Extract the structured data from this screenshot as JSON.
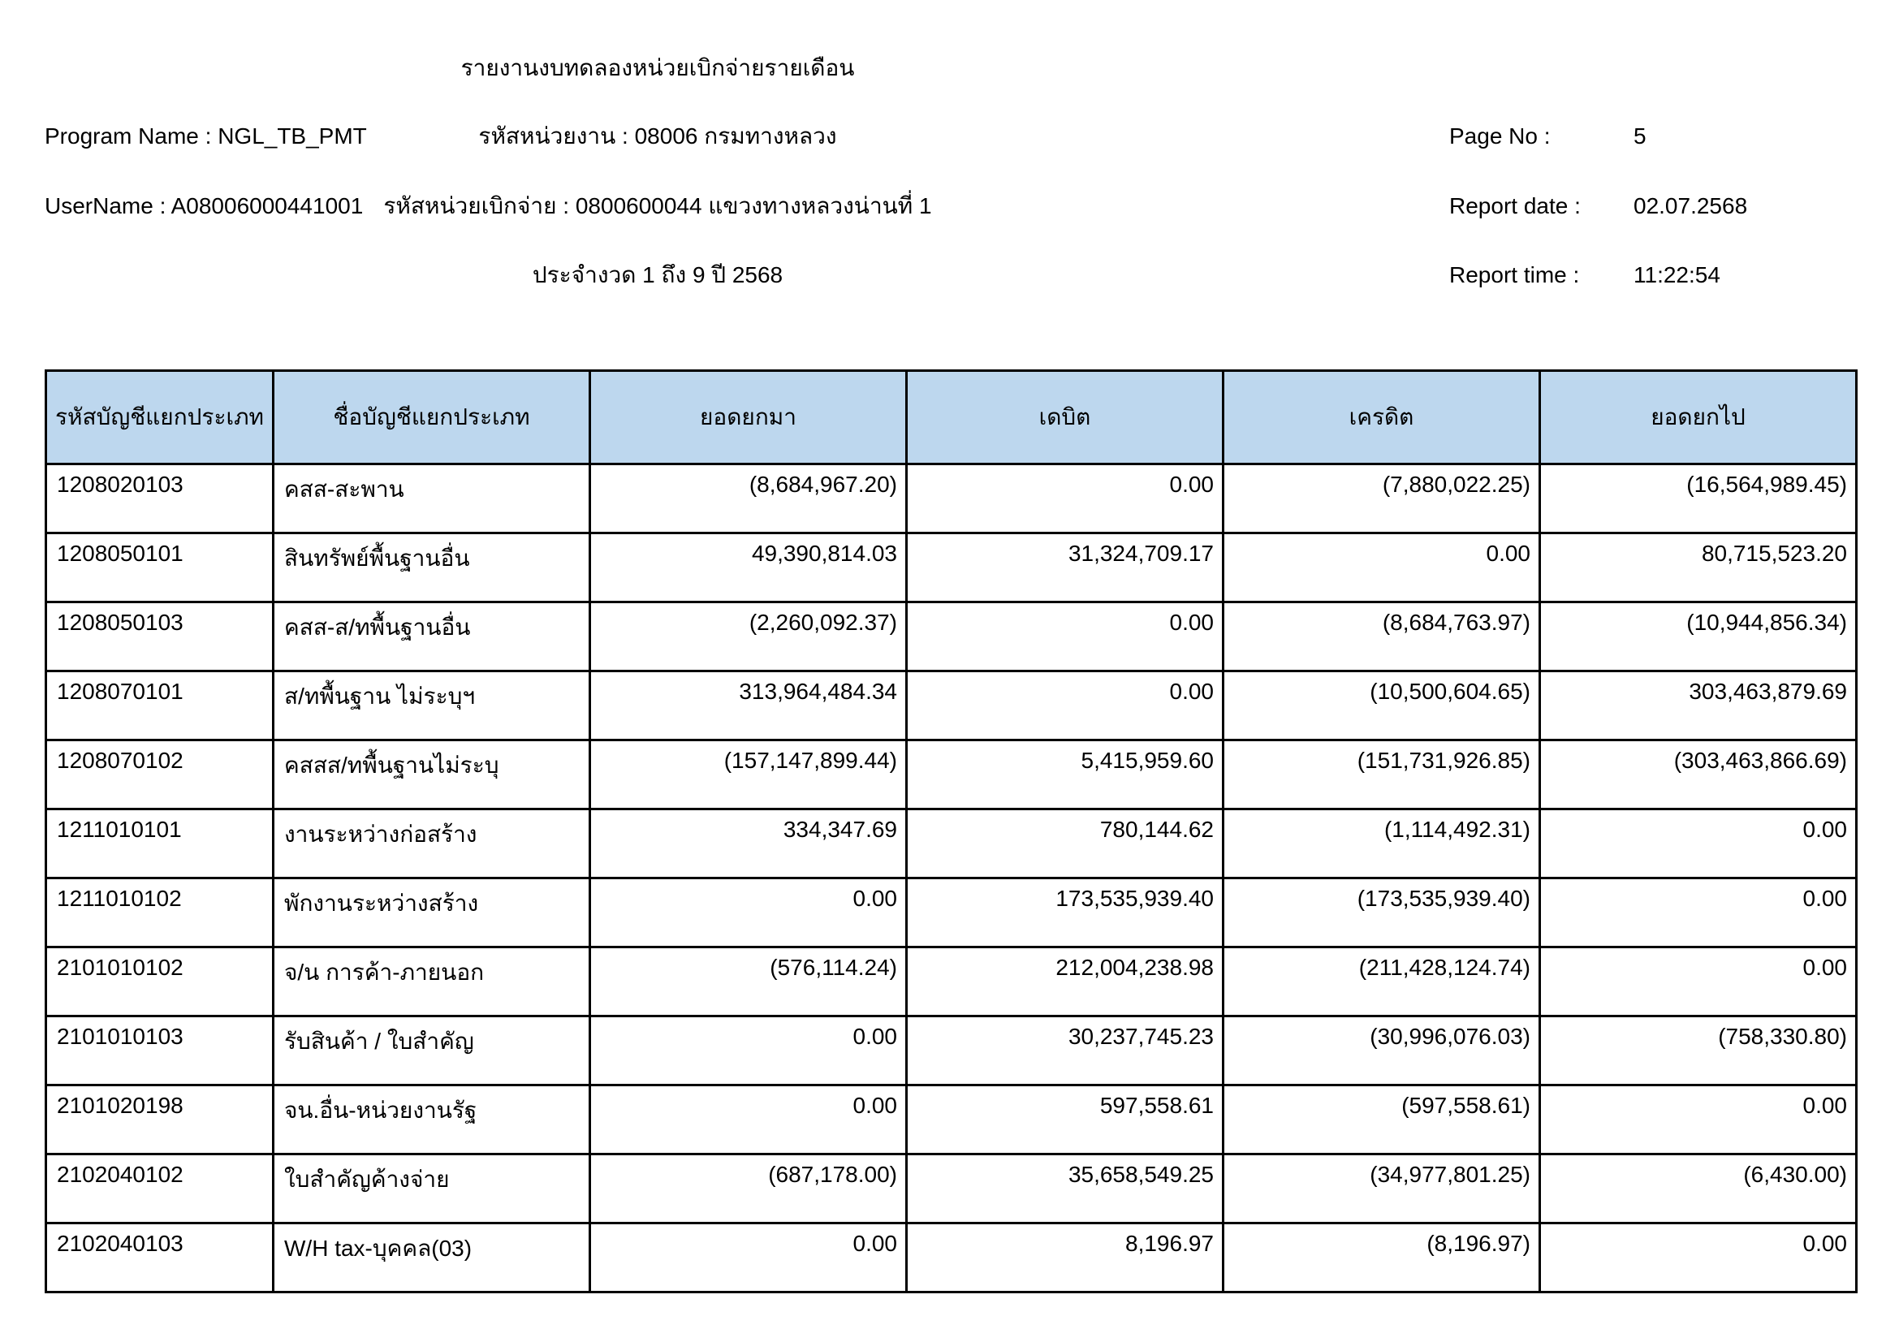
{
  "report": {
    "title": "รายงานงบทดลองหน่วยเบิกจ่ายรายเดือน",
    "program_name_label": "Program Name :",
    "program_name": "NGL_TB_PMT",
    "username_label": "UserName :",
    "username": "A08006000441001",
    "agency_line": "รหัสหน่วยงาน : 08006 กรมทางหลวง",
    "disbursement_line": "รหัสหน่วยเบิกจ่าย : 0800600044 แขวงทางหลวงน่านที่ 1",
    "period_line": "ประจำงวด 1 ถึง 9 ปี 2568",
    "page_no_label": "Page No :",
    "page_no": "5",
    "report_date_label": "Report date :",
    "report_date": "02.07.2568",
    "report_time_label": "Report time :",
    "report_time": "11:22:54"
  },
  "table": {
    "header_bg": "#BDD7EE",
    "border_color": "#000000",
    "columns": [
      "รหัสบัญชีแยกประเภท",
      "ชื่อบัญชีแยกประเภท",
      "ยอดยกมา",
      "เดบิต",
      "เครดิต",
      "ยอดยกไป"
    ],
    "rows": [
      [
        "1208020103",
        "คสส-สะพาน",
        "(8,684,967.20)",
        "0.00",
        "(7,880,022.25)",
        "(16,564,989.45)"
      ],
      [
        "1208050101",
        "สินทรัพย์พื้นฐานอื่น",
        "49,390,814.03",
        "31,324,709.17",
        "0.00",
        "80,715,523.20"
      ],
      [
        "1208050103",
        "คสส-ส/ทพื้นฐานอื่น",
        "(2,260,092.37)",
        "0.00",
        "(8,684,763.97)",
        "(10,944,856.34)"
      ],
      [
        "1208070101",
        "ส/ทพื้นฐาน ไม่ระบุฯ",
        "313,964,484.34",
        "0.00",
        "(10,500,604.65)",
        "303,463,879.69"
      ],
      [
        "1208070102",
        "คสสส/ทพื้นฐานไม่ระบุ",
        "(157,147,899.44)",
        "5,415,959.60",
        "(151,731,926.85)",
        "(303,463,866.69)"
      ],
      [
        "1211010101",
        "งานระหว่างก่อสร้าง",
        "334,347.69",
        "780,144.62",
        "(1,114,492.31)",
        "0.00"
      ],
      [
        "1211010102",
        "พักงานระหว่างสร้าง",
        "0.00",
        "173,535,939.40",
        "(173,535,939.40)",
        "0.00"
      ],
      [
        "2101010102",
        "จ/น การค้า-ภายนอก",
        "(576,114.24)",
        "212,004,238.98",
        "(211,428,124.74)",
        "0.00"
      ],
      [
        "2101010103",
        "รับสินค้า / ใบสำคัญ",
        "0.00",
        "30,237,745.23",
        "(30,996,076.03)",
        "(758,330.80)"
      ],
      [
        "2101020198",
        "จน.อื่น-หน่วยงานรัฐ",
        "0.00",
        "597,558.61",
        "(597,558.61)",
        "0.00"
      ],
      [
        "2102040102",
        "ใบสำคัญค้างจ่าย",
        "(687,178.00)",
        "35,658,549.25",
        "(34,977,801.25)",
        "(6,430.00)"
      ],
      [
        "2102040103",
        "W/H tax-บุคคล(03)",
        "0.00",
        "8,196.97",
        "(8,196.97)",
        "0.00"
      ]
    ],
    "cell_names": [
      "cell-account-code",
      "cell-account-name",
      "cell-opening-balance",
      "cell-debit",
      "cell-credit",
      "cell-closing-balance"
    ]
  }
}
